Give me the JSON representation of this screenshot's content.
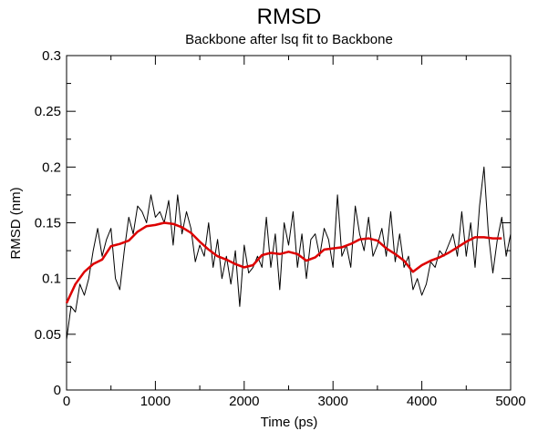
{
  "chart_data": {
    "type": "line",
    "title": "RMSD",
    "subtitle": "Backbone after lsq fit to Backbone",
    "xlabel": "Time (ps)",
    "ylabel": "RMSD (nm)",
    "xlim": [
      0,
      5000
    ],
    "ylim": [
      0,
      0.3
    ],
    "x_ticks": [
      "0",
      "1000",
      "2000",
      "3000",
      "4000",
      "5000"
    ],
    "y_ticks": [
      "0",
      "0.05",
      "0.1",
      "0.15",
      "0.2",
      "0.25",
      "0.3"
    ],
    "grid": false,
    "series": [
      {
        "color": "#000000",
        "x": [
          0,
          50,
          100,
          150,
          200,
          250,
          300,
          350,
          400,
          450,
          500,
          550,
          600,
          650,
          700,
          750,
          800,
          850,
          900,
          950,
          1000,
          1050,
          1100,
          1150,
          1200,
          1250,
          1300,
          1350,
          1400,
          1450,
          1500,
          1550,
          1600,
          1650,
          1700,
          1750,
          1800,
          1850,
          1900,
          1950,
          2000,
          2050,
          2100,
          2150,
          2200,
          2250,
          2300,
          2350,
          2400,
          2450,
          2500,
          2550,
          2600,
          2650,
          2700,
          2750,
          2800,
          2850,
          2900,
          2950,
          3000,
          3050,
          3100,
          3150,
          3200,
          3250,
          3300,
          3350,
          3400,
          3450,
          3500,
          3550,
          3600,
          3650,
          3700,
          3750,
          3800,
          3850,
          3900,
          3950,
          4000,
          4050,
          4100,
          4150,
          4200,
          4250,
          4300,
          4350,
          4400,
          4450,
          4500,
          4550,
          4600,
          4650,
          4700,
          4750,
          4800,
          4850,
          4900,
          4950,
          5000
        ],
        "y": [
          0.045,
          0.075,
          0.07,
          0.095,
          0.085,
          0.1,
          0.125,
          0.145,
          0.12,
          0.135,
          0.145,
          0.1,
          0.09,
          0.125,
          0.155,
          0.14,
          0.165,
          0.16,
          0.15,
          0.175,
          0.155,
          0.16,
          0.15,
          0.17,
          0.13,
          0.175,
          0.14,
          0.16,
          0.145,
          0.115,
          0.13,
          0.12,
          0.15,
          0.11,
          0.135,
          0.1,
          0.12,
          0.095,
          0.125,
          0.075,
          0.13,
          0.105,
          0.11,
          0.12,
          0.11,
          0.155,
          0.11,
          0.14,
          0.09,
          0.15,
          0.13,
          0.16,
          0.11,
          0.14,
          0.1,
          0.135,
          0.14,
          0.12,
          0.145,
          0.135,
          0.11,
          0.175,
          0.12,
          0.13,
          0.11,
          0.165,
          0.14,
          0.125,
          0.155,
          0.12,
          0.13,
          0.145,
          0.12,
          0.16,
          0.115,
          0.14,
          0.11,
          0.12,
          0.09,
          0.1,
          0.085,
          0.095,
          0.115,
          0.11,
          0.125,
          0.12,
          0.13,
          0.14,
          0.12,
          0.16,
          0.12,
          0.15,
          0.11,
          0.165,
          0.2,
          0.14,
          0.105,
          0.135,
          0.155,
          0.12,
          0.14
        ]
      },
      {
        "color": "#dd0000",
        "x": [
          0,
          100,
          200,
          300,
          400,
          500,
          600,
          700,
          800,
          900,
          1000,
          1100,
          1200,
          1300,
          1400,
          1500,
          1600,
          1700,
          1800,
          1900,
          2000,
          2100,
          2200,
          2300,
          2400,
          2500,
          2600,
          2700,
          2800,
          2900,
          3000,
          3100,
          3200,
          3300,
          3400,
          3500,
          3600,
          3700,
          3800,
          3900,
          4000,
          4100,
          4200,
          4300,
          4400,
          4500,
          4600,
          4700,
          4800,
          4900
        ],
        "y": [
          0.078,
          0.095,
          0.106,
          0.113,
          0.117,
          0.129,
          0.131,
          0.134,
          0.142,
          0.147,
          0.148,
          0.15,
          0.149,
          0.146,
          0.141,
          0.133,
          0.126,
          0.12,
          0.117,
          0.113,
          0.11,
          0.112,
          0.121,
          0.123,
          0.122,
          0.124,
          0.122,
          0.116,
          0.119,
          0.126,
          0.127,
          0.128,
          0.131,
          0.135,
          0.136,
          0.134,
          0.127,
          0.122,
          0.116,
          0.106,
          0.112,
          0.116,
          0.119,
          0.123,
          0.128,
          0.133,
          0.137,
          0.137,
          0.136,
          0.136
        ]
      }
    ]
  }
}
